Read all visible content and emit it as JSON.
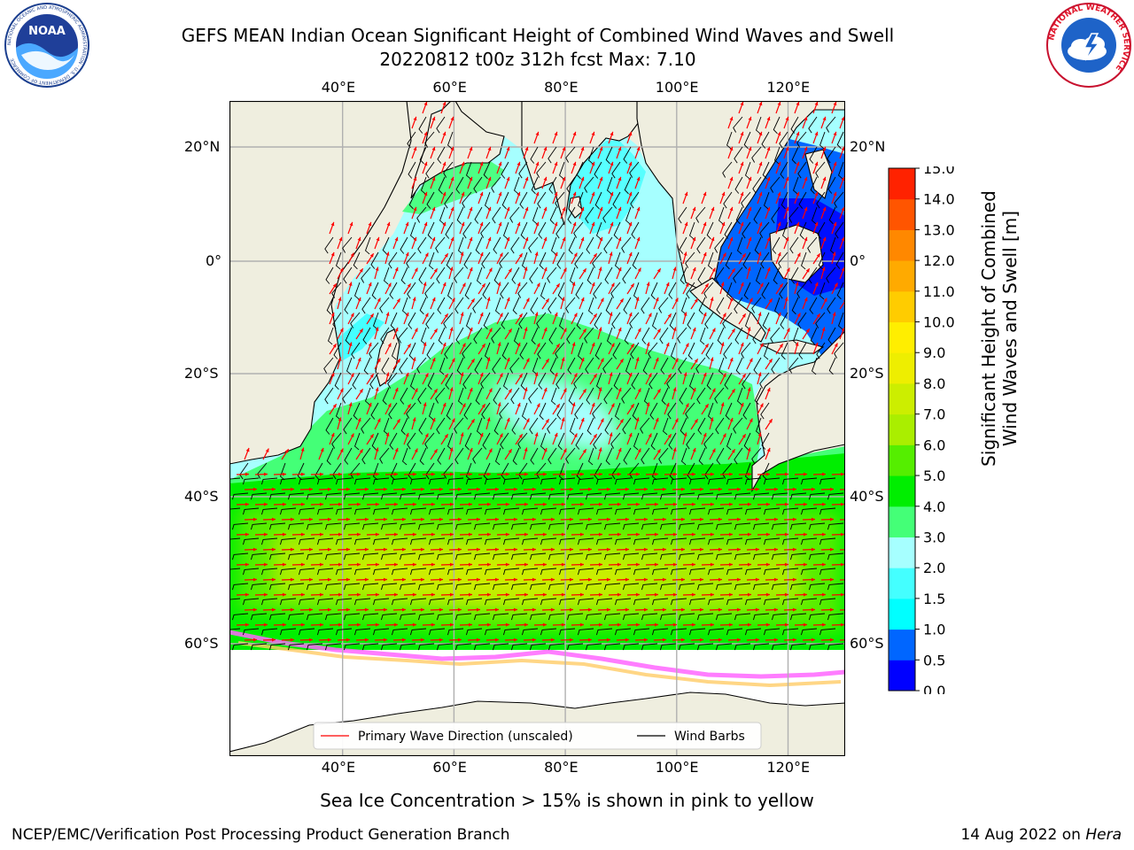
{
  "header": {
    "title_line1": "GEFS MEAN Indian Ocean Significant Height of Combined Wind Waves and Swell",
    "title_line2": "20220812 t00z 312h fcst   Max: 7.10"
  },
  "logos": {
    "noaa_label": "NOAA",
    "noaa_ring_text": "NATIONAL OCEANIC AND ATMOSPHERIC ADMINISTRATION · U.S. DEPARTMENT OF COMMERCE",
    "nws_ring_text": "NATIONAL WEATHER SERVICE"
  },
  "map": {
    "lon_labels": [
      "40°E",
      "60°E",
      "80°E",
      "100°E",
      "120°E"
    ],
    "lat_labels": [
      "20°N",
      "0°",
      "20°S",
      "40°S",
      "60°S"
    ],
    "lon_values": [
      40,
      60,
      80,
      100,
      120
    ],
    "lat_values": [
      20,
      0,
      -20,
      -40,
      -60
    ],
    "extent": {
      "lon_min": 20,
      "lon_max": 130,
      "lat_min": -73,
      "lat_max": 28
    },
    "colors": {
      "land": "#efeedf",
      "sea_ice": "#ffffff",
      "ice_edge": [
        "#ff66ff",
        "#ff99cc",
        "#ffcc66",
        "#ffaa33"
      ],
      "grid": "#b0b0b0"
    },
    "legend": {
      "wave_label": "Primary Wave Direction (unscaled)",
      "wind_label": "Wind Barbs",
      "wave_color": "#ff0000",
      "wind_color": "#000000"
    }
  },
  "colorbar": {
    "label_line1": "Significant Height of Combined",
    "label_line2": "Wind Waves and Swell [m]",
    "ticks": [
      "0.0",
      "0.5",
      "1.0",
      "1.5",
      "2.0",
      "3.0",
      "4.0",
      "5.0",
      "6.0",
      "7.0",
      "8.0",
      "9.0",
      "10.0",
      "11.0",
      "12.0",
      "13.0",
      "14.0",
      "15.0"
    ],
    "colors": [
      "#0000ff",
      "#0066ff",
      "#00ffff",
      "#44ffff",
      "#a6ffff",
      "#44ff77",
      "#00ee00",
      "#55ee00",
      "#aaee00",
      "#ccee00",
      "#eeee00",
      "#ffee00",
      "#ffcc00",
      "#ffaa00",
      "#ff8800",
      "#ff5500",
      "#ff2200"
    ]
  },
  "notes": {
    "ice_note": "Sea Ice Concentration > 15% is shown in pink to yellow",
    "credit": "NCEP/EMC/Verification Post Processing Product Generation Branch",
    "date": "14 Aug 2022 on ",
    "host": "Hera"
  }
}
